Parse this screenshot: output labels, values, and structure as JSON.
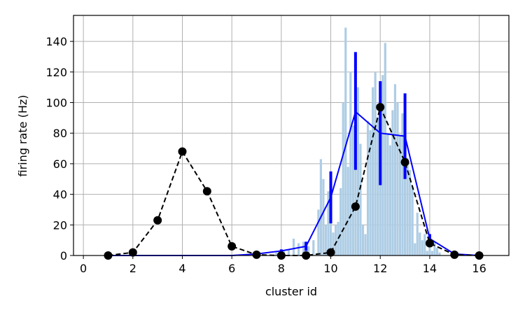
{
  "chart_data": {
    "type": "line",
    "xlabel": "cluster id",
    "ylabel": "firing rate (Hz)",
    "xlim": [
      -0.4,
      17.2
    ],
    "ylim": [
      0,
      157
    ],
    "xticks": [
      0,
      2,
      4,
      6,
      8,
      10,
      12,
      14,
      16
    ],
    "yticks": [
      0,
      20,
      40,
      60,
      80,
      100,
      120,
      140
    ],
    "grid": true,
    "series": [
      {
        "style": "dashed-line-with-markers",
        "color": "#000000",
        "x": [
          1,
          2,
          3,
          4,
          5,
          6,
          7,
          8,
          9,
          10,
          11,
          12,
          13,
          14,
          15,
          16
        ],
        "y": [
          0,
          2,
          23,
          68,
          42,
          6,
          0.5,
          0,
          0,
          2,
          32,
          97,
          61,
          8,
          0.5,
          0
        ]
      },
      {
        "style": "line-with-errorbars",
        "color": "#0000ff",
        "x": [
          1,
          2,
          3,
          4,
          5,
          6,
          7,
          8,
          9,
          10,
          11,
          12,
          13,
          14,
          15,
          16
        ],
        "y": [
          0,
          0,
          0,
          0,
          0,
          0,
          1,
          3,
          6,
          38,
          94,
          80,
          78,
          11,
          1,
          0
        ],
        "err_low": [
          0,
          0,
          0,
          0,
          0,
          0,
          0.5,
          2,
          3,
          21,
          56,
          46,
          50,
          8,
          0.5,
          0
        ],
        "err_high": [
          0,
          0,
          0,
          0,
          0,
          0,
          1.5,
          4,
          9,
          55,
          133,
          114,
          106,
          14,
          1.5,
          0
        ]
      },
      {
        "style": "histogram-bars",
        "color": "#aecde5",
        "bar_width": 0.09,
        "x": [
          7.8,
          7.9,
          8.1,
          8.3,
          8.5,
          8.7,
          8.9,
          9.1,
          9.3,
          9.5,
          9.6,
          9.7,
          9.8,
          9.9,
          10.0,
          10.1,
          10.2,
          10.3,
          10.4,
          10.5,
          10.6,
          10.7,
          10.8,
          10.9,
          11.0,
          11.1,
          11.2,
          11.3,
          11.4,
          11.5,
          11.6,
          11.7,
          11.8,
          11.9,
          12.0,
          12.1,
          12.2,
          12.3,
          12.4,
          12.5,
          12.6,
          12.7,
          12.8,
          12.9,
          13.0,
          13.1,
          13.2,
          13.3,
          13.4,
          13.5,
          13.6,
          13.7,
          13.8,
          13.9,
          14.0,
          14.1,
          14.2,
          14.3,
          14.4
        ],
        "values": [
          2,
          1,
          3,
          4,
          11,
          8,
          9,
          6,
          10,
          30,
          63,
          50,
          20,
          42,
          28,
          15,
          20,
          22,
          44,
          100,
          149,
          58,
          120,
          85,
          88,
          110,
          73,
          20,
          14,
          88,
          82,
          110,
          120,
          90,
          72,
          118,
          139,
          80,
          72,
          95,
          112,
          100,
          78,
          93,
          105,
          64,
          56,
          45,
          8,
          28,
          15,
          10,
          14,
          3,
          10,
          3,
          9,
          5,
          2
        ]
      }
    ]
  }
}
